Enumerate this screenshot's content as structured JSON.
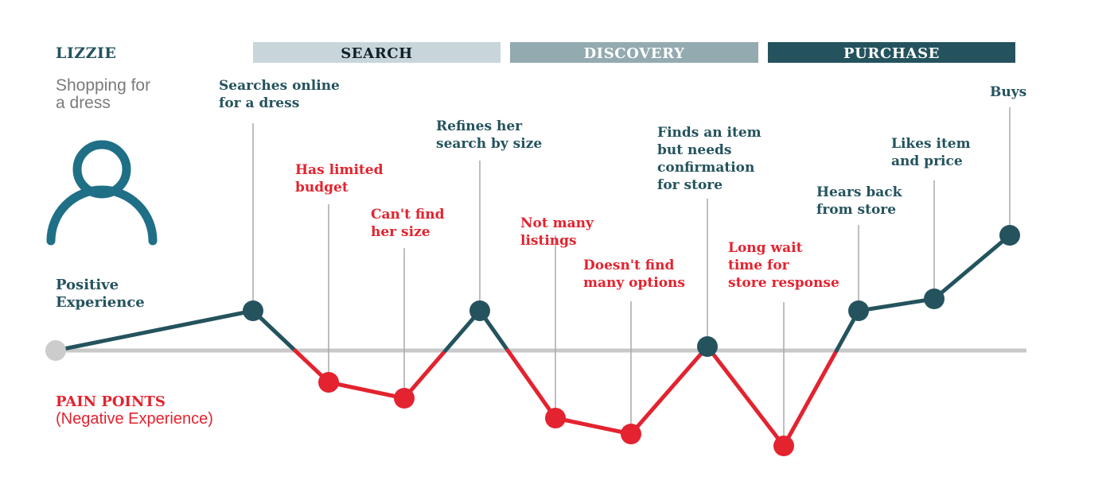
{
  "persona": {
    "name": "LIZZIE",
    "goal_line1": "Shopping for",
    "goal_line2": "a dress",
    "icon": "person-icon"
  },
  "stages": [
    {
      "label": "SEARCH",
      "color": "#c8d6dc",
      "text_color": "#0f1f24"
    },
    {
      "label": "DISCOVERY",
      "color": "#93aab0",
      "text_color": "#ffffff"
    },
    {
      "label": "PURCHASE",
      "color": "#24535e",
      "text_color": "#ffffff"
    }
  ],
  "axis_labels": {
    "positive_line1": "Positive",
    "positive_line2": "Experience",
    "pain_title": "PAIN POINTS",
    "pain_subtitle": "(Negative Experience)"
  },
  "colors": {
    "positive": "#24535e",
    "negative": "#e3232f",
    "baseline": "#c9c9c9",
    "leader": "#a9a9a9",
    "start": "#cccccc",
    "persona_muted": "#7a7a7a"
  },
  "chart_data": {
    "type": "line",
    "baseline": 0,
    "points": [
      {
        "value": 0.0,
        "type": "start",
        "lines": []
      },
      {
        "value": 1.0,
        "type": "positive",
        "lines": [
          "Searches online",
          "for a dress"
        ]
      },
      {
        "value": -0.8,
        "type": "negative",
        "lines": [
          "Has limited",
          "budget"
        ]
      },
      {
        "value": -1.2,
        "type": "negative",
        "lines": [
          "Can't find",
          "her size"
        ]
      },
      {
        "value": 1.0,
        "type": "positive",
        "lines": [
          "Refines her",
          "search by size"
        ]
      },
      {
        "value": -1.7,
        "type": "negative",
        "lines": [
          "Not many",
          "listings"
        ]
      },
      {
        "value": -2.1,
        "type": "negative",
        "lines": [
          "Doesn't find",
          "many options"
        ]
      },
      {
        "value": 0.1,
        "type": "positive",
        "lines": [
          "Finds an item",
          "but needs",
          "confirmation",
          "for store"
        ]
      },
      {
        "value": -2.4,
        "type": "negative",
        "lines": [
          "Long wait",
          "time for",
          "store response"
        ]
      },
      {
        "value": 1.0,
        "type": "positive",
        "lines": [
          "Hears back",
          "from store"
        ]
      },
      {
        "value": 1.3,
        "type": "positive",
        "lines": [
          "Likes item",
          "and price"
        ]
      },
      {
        "value": 2.9,
        "type": "positive",
        "lines": [
          "Buys"
        ]
      }
    ]
  }
}
